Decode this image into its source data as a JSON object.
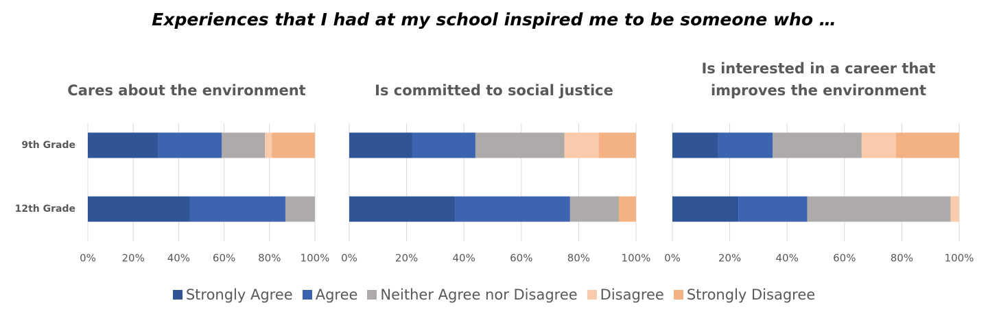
{
  "title": "Experiences that I had at my school inspired me to be someone who …",
  "chart_data": [
    {
      "type": "bar",
      "orientation": "horizontal",
      "stacked": true,
      "title": "Cares about the environment",
      "categories": [
        "9th Grade",
        "12th Grade"
      ],
      "series": [
        {
          "name": "Strongly Agree",
          "color": "#2f5597",
          "values": [
            31,
            45
          ]
        },
        {
          "name": "Agree",
          "color": "#3c64b1",
          "values": [
            28,
            42
          ]
        },
        {
          "name": "Neither Agree nor Disagree",
          "color": "#aeaaaa",
          "values": [
            19,
            13
          ]
        },
        {
          "name": "Disagree",
          "color": "#f8cbad",
          "values": [
            3,
            0
          ]
        },
        {
          "name": "Strongly Disagree",
          "color": "#f4b183",
          "values": [
            19,
            0
          ]
        }
      ],
      "xlim": [
        0,
        100
      ],
      "xticks": [
        {
          "value": 0,
          "label": "0%"
        },
        {
          "value": 20,
          "label": "20%"
        },
        {
          "value": 40,
          "label": "40%"
        },
        {
          "value": 60,
          "label": "60%"
        },
        {
          "value": 80,
          "label": "80%"
        },
        {
          "value": 100,
          "label": "100%"
        }
      ],
      "grid": true
    },
    {
      "type": "bar",
      "orientation": "horizontal",
      "stacked": true,
      "title": "Is committed to social justice",
      "series": [
        {
          "values": [
            22,
            37
          ]
        },
        {
          "values": [
            22,
            40
          ]
        },
        {
          "values": [
            31,
            17
          ]
        },
        {
          "values": [
            12,
            0
          ]
        },
        {
          "values": [
            13,
            6
          ]
        }
      ],
      "xlim": [
        0,
        100
      ],
      "xticks": [
        {
          "value": 0,
          "label": "0%"
        },
        {
          "value": 20,
          "label": "20%"
        },
        {
          "value": 40,
          "label": "40%"
        },
        {
          "value": 60,
          "label": "60%"
        },
        {
          "value": 80,
          "label": "80%"
        },
        {
          "value": 100,
          "label": "100%"
        }
      ],
      "grid": true
    },
    {
      "type": "bar",
      "orientation": "horizontal",
      "stacked": true,
      "title": "Is interested in a career that improves the environment",
      "series": [
        {
          "values": [
            16,
            23
          ]
        },
        {
          "values": [
            19,
            24
          ]
        },
        {
          "values": [
            31,
            50
          ]
        },
        {
          "values": [
            12,
            3
          ]
        },
        {
          "values": [
            22,
            0
          ]
        }
      ],
      "xlim": [
        0,
        100
      ],
      "xticks": [
        {
          "value": 0,
          "label": "0%"
        },
        {
          "value": 20,
          "label": "20%"
        },
        {
          "value": 40,
          "label": "40%"
        },
        {
          "value": 60,
          "label": "60%"
        },
        {
          "value": 80,
          "label": "80%"
        },
        {
          "value": 100,
          "label": "100%"
        }
      ],
      "grid": true
    }
  ]
}
